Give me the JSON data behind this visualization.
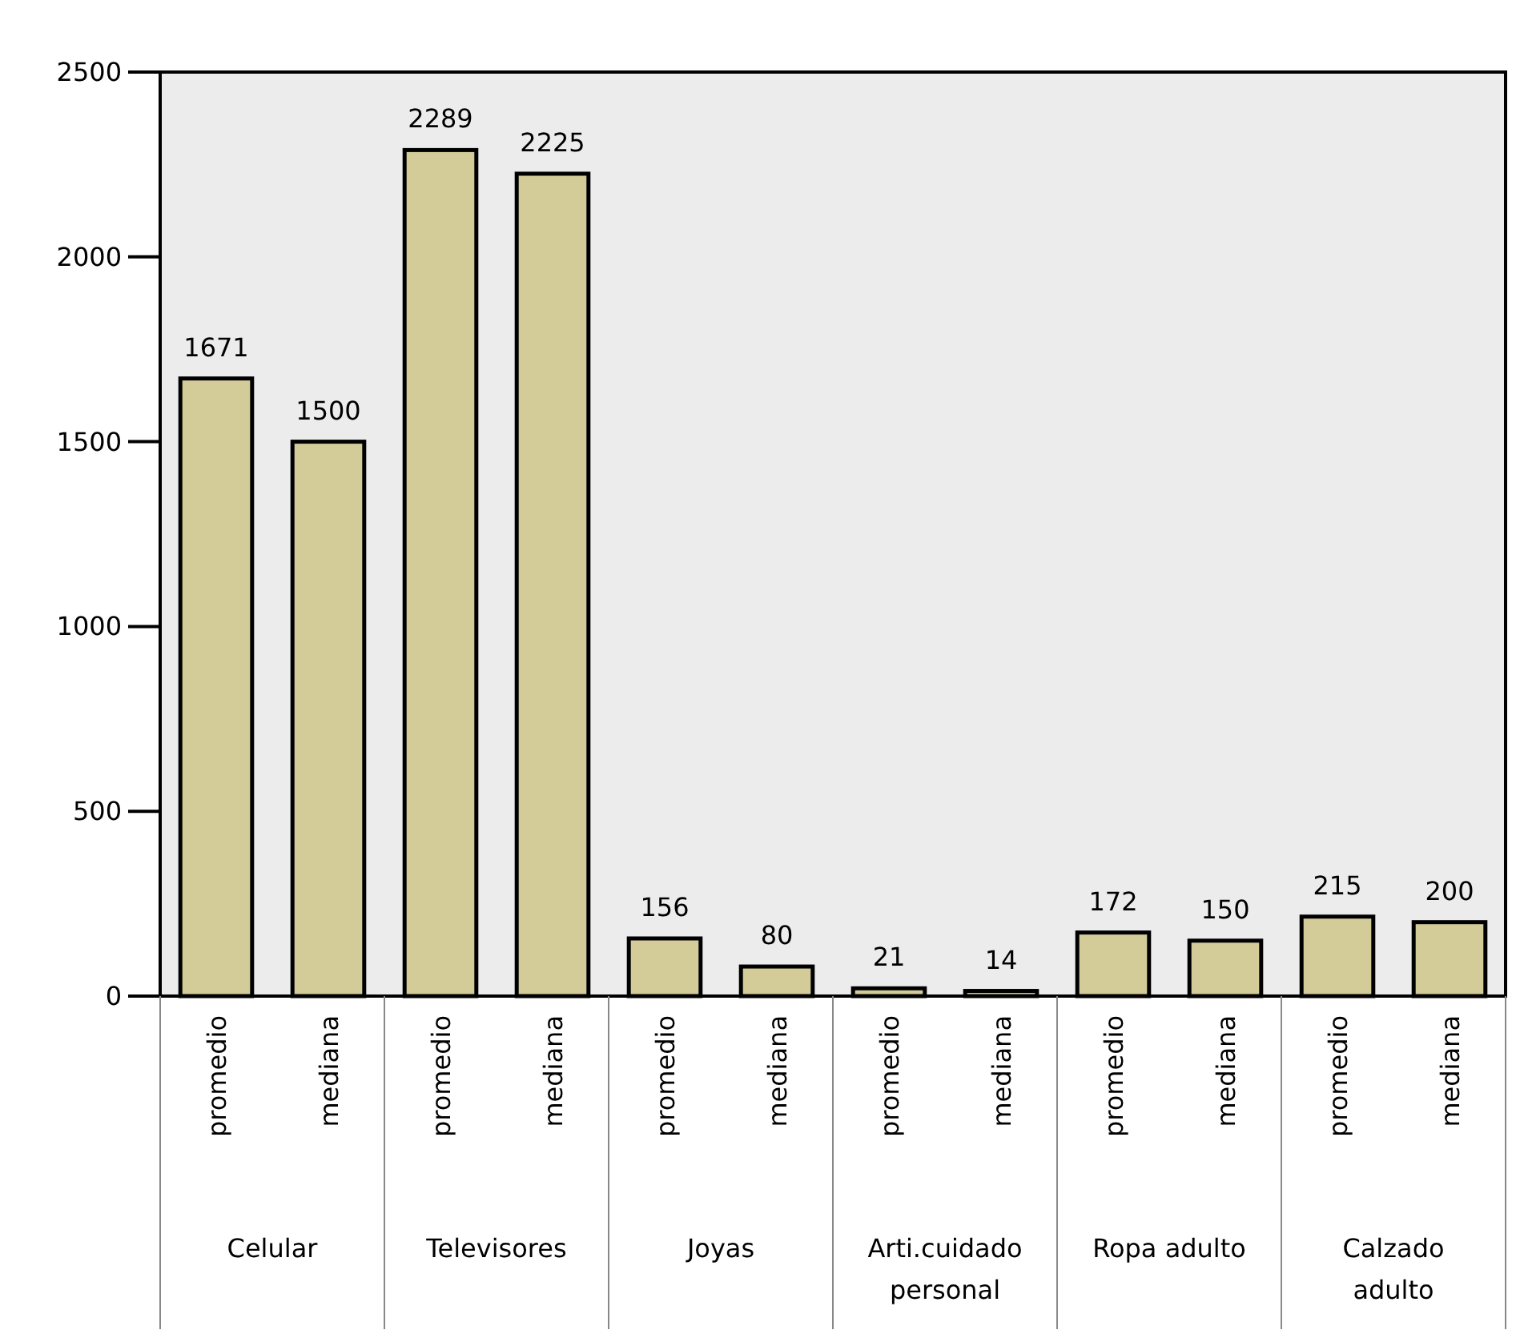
{
  "chart_data": {
    "type": "bar",
    "categories": [
      "promedio",
      "mediana",
      "promedio",
      "mediana",
      "promedio",
      "mediana",
      "promedio",
      "mediana",
      "promedio",
      "mediana",
      "promedio",
      "mediana"
    ],
    "values": [
      1671,
      1500,
      2289,
      2225,
      156,
      80,
      21,
      14,
      172,
      150,
      215,
      200
    ],
    "color": "#d3cb98",
    "data_labels": true,
    "ylim": [
      0,
      2500
    ],
    "yticks": [
      0,
      500,
      1000,
      1500,
      2000,
      2500
    ],
    "grid": false,
    "annotations": [
      "Celular",
      "Televisores",
      "Joyas",
      "Arti.cuidado personal",
      "Ropa adulto",
      "Calzado adulto"
    ]
  }
}
